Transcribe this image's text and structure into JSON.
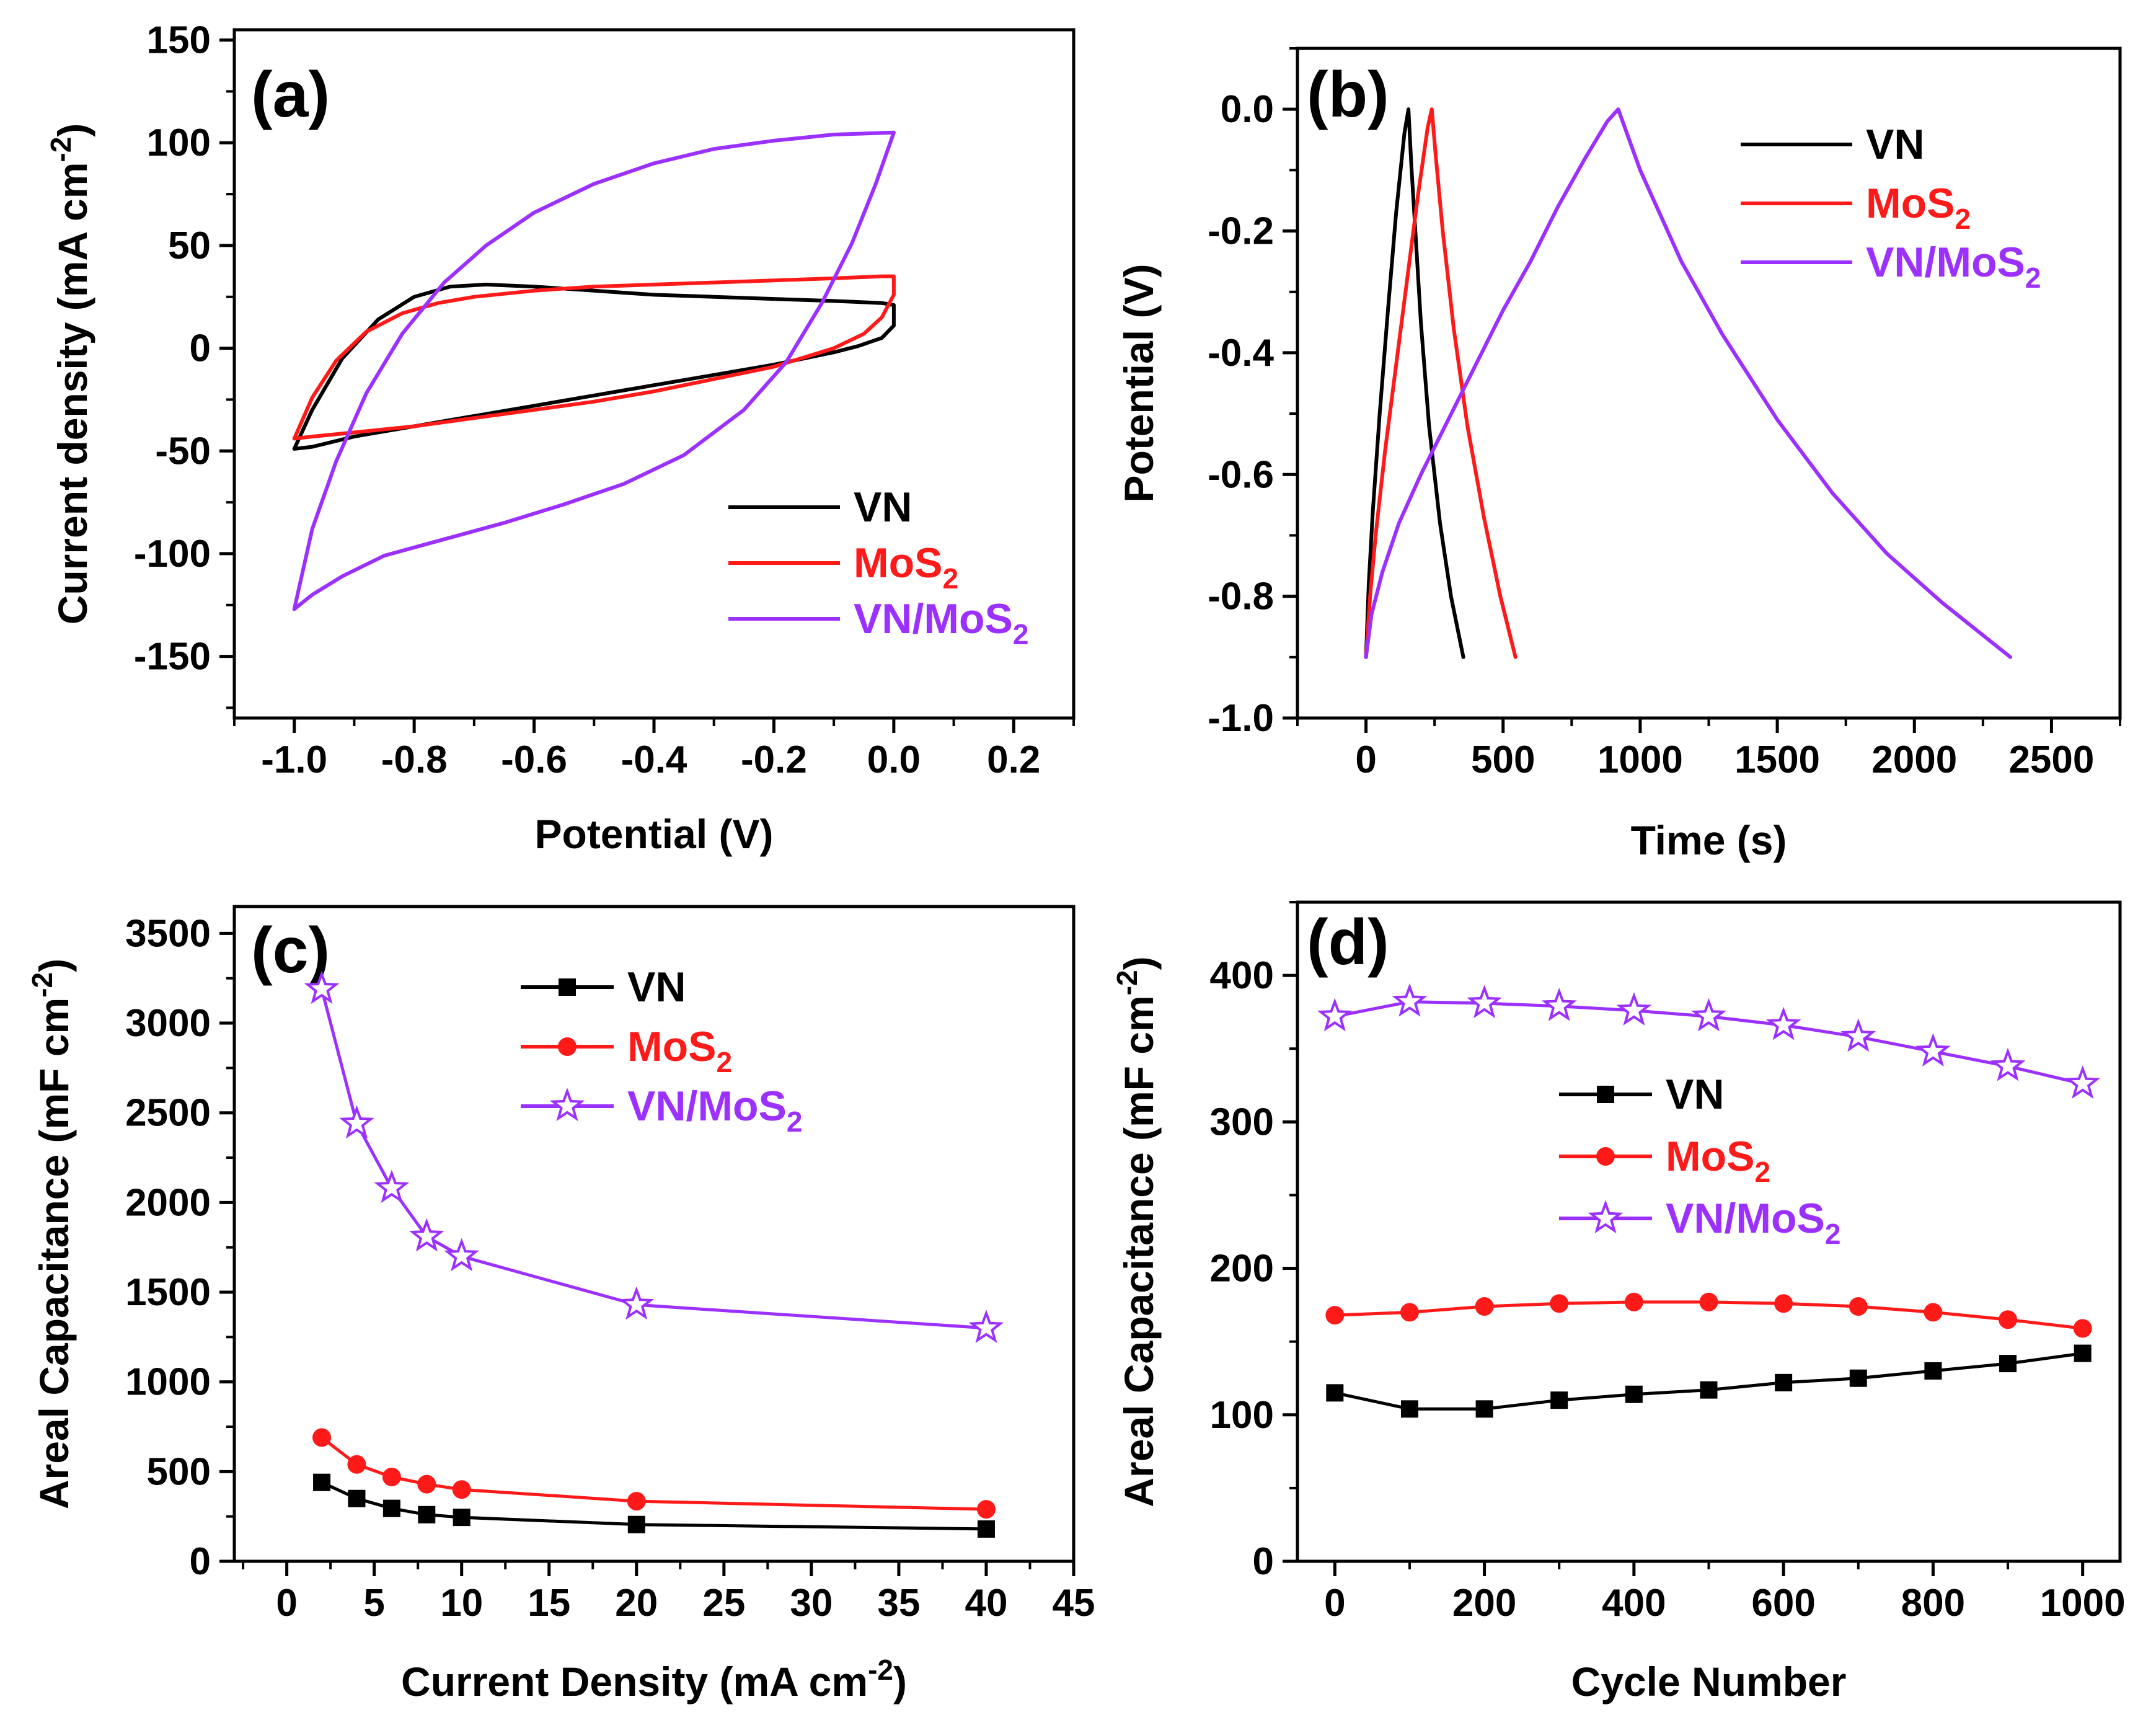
{
  "colors": {
    "VN": "#000000",
    "MoS2": "#ff1a1a",
    "VN/MoS2": "#9b30ff"
  },
  "chart_data": [
    {
      "id": "a",
      "type": "line",
      "panel_label": "(a)",
      "xlabel": "Potential (V)",
      "ylabel": {
        "main": "Current density (mA cm",
        "sup": "-2",
        "close": ")"
      },
      "xlim": [
        -1.1,
        0.3
      ],
      "ylim": [
        -180,
        155
      ],
      "xticks": [
        -1.0,
        -0.8,
        -0.6,
        -0.4,
        -0.2,
        0.0,
        0.2
      ],
      "xtick_labels": [
        "-1.0",
        "-0.8",
        "-0.6",
        "-0.4",
        "-0.2",
        "0.0",
        "0.2"
      ],
      "yticks": [
        -150,
        -100,
        -50,
        0,
        50,
        100,
        150
      ],
      "ytick_labels": [
        "-150",
        "-100",
        "-50",
        "0",
        "50",
        "100",
        "150"
      ],
      "legend_position": "bottom-right",
      "series": [
        {
          "key": "VN",
          "name": "VN",
          "sub": "",
          "name_tail": "",
          "x": [
            -1.0,
            -0.97,
            -0.92,
            -0.86,
            -0.8,
            -0.74,
            -0.68,
            -0.6,
            -0.5,
            -0.4,
            -0.3,
            -0.2,
            -0.1,
            -0.02,
            0.0,
            0.0,
            -0.02,
            -0.06,
            -0.1,
            -0.2,
            -0.3,
            -0.4,
            -0.5,
            -0.6,
            -0.7,
            -0.8,
            -0.9,
            -0.97,
            -1.0
          ],
          "y": [
            -49,
            -30,
            -5,
            14,
            25,
            30,
            31,
            30,
            28,
            26,
            25,
            24,
            23,
            22,
            21,
            11,
            5,
            1,
            -2,
            -8,
            -13,
            -18,
            -23,
            -28,
            -33,
            -38,
            -43,
            -48,
            -49
          ]
        },
        {
          "key": "MoS2",
          "name": "MoS",
          "sub": "2",
          "name_tail": "",
          "x": [
            -1.0,
            -0.97,
            -0.93,
            -0.88,
            -0.82,
            -0.76,
            -0.7,
            -0.6,
            -0.5,
            -0.4,
            -0.3,
            -0.2,
            -0.1,
            -0.02,
            0.0,
            0.0,
            -0.02,
            -0.05,
            -0.1,
            -0.2,
            -0.3,
            -0.4,
            -0.5,
            -0.6,
            -0.7,
            -0.8,
            -0.9,
            -0.97,
            -1.0
          ],
          "y": [
            -44,
            -24,
            -6,
            8,
            17,
            22,
            25,
            28,
            30,
            31,
            32,
            33,
            34,
            35,
            35,
            26,
            15,
            7,
            0,
            -9,
            -15,
            -21,
            -26,
            -30,
            -34,
            -38,
            -41,
            -43,
            -44
          ]
        },
        {
          "key": "VN/MoS2",
          "name": "VN/MoS",
          "sub": "2",
          "name_tail": "",
          "x": [
            -1.0,
            -0.97,
            -0.93,
            -0.88,
            -0.82,
            -0.75,
            -0.68,
            -0.6,
            -0.5,
            -0.4,
            -0.3,
            -0.2,
            -0.1,
            0.0,
            0.0,
            -0.03,
            -0.07,
            -0.12,
            -0.18,
            -0.25,
            -0.35,
            -0.45,
            -0.55,
            -0.65,
            -0.75,
            -0.85,
            -0.92,
            -0.97,
            -1.0
          ],
          "y": [
            -127,
            -88,
            -55,
            -22,
            7,
            32,
            50,
            66,
            80,
            90,
            97,
            101,
            104,
            105,
            105,
            80,
            51,
            22,
            -7,
            -30,
            -52,
            -66,
            -76,
            -85,
            -93,
            -101,
            -111,
            -120,
            -127
          ]
        }
      ]
    },
    {
      "id": "b",
      "type": "line",
      "panel_label": "(b)",
      "xlabel": "Time (s)",
      "ylabel": {
        "main": "Potential (V)",
        "sup": "",
        "close": ""
      },
      "xlim": [
        -250,
        2750
      ],
      "ylim": [
        -1.0,
        0.1
      ],
      "xticks": [
        0,
        500,
        1000,
        1500,
        2000,
        2500
      ],
      "xtick_labels": [
        "0",
        "500",
        "1000",
        "1500",
        "2000",
        "2500"
      ],
      "yticks": [
        -1.0,
        -0.8,
        -0.6,
        -0.4,
        -0.2,
        0.0
      ],
      "ytick_labels": [
        "-1.0",
        "-0.8",
        "-0.6",
        "-0.4",
        "-0.2",
        "0.0"
      ],
      "legend_position": "top-right",
      "series": [
        {
          "key": "VN",
          "name": "VN",
          "sub": "",
          "name_tail": "",
          "x": [
            0,
            10,
            25,
            50,
            80,
            110,
            140,
            155,
            155,
            165,
            180,
            200,
            230,
            270,
            310,
            355
          ],
          "y": [
            -0.9,
            -0.78,
            -0.66,
            -0.5,
            -0.33,
            -0.17,
            -0.04,
            0.0,
            0.0,
            -0.09,
            -0.2,
            -0.35,
            -0.52,
            -0.68,
            -0.8,
            -0.9
          ]
        },
        {
          "key": "MoS2",
          "name": "MoS",
          "sub": "2",
          "name_tail": "",
          "x": [
            0,
            15,
            35,
            70,
            110,
            150,
            190,
            225,
            240,
            240,
            255,
            280,
            320,
            370,
            430,
            490,
            545
          ],
          "y": [
            -0.9,
            -0.8,
            -0.7,
            -0.56,
            -0.42,
            -0.28,
            -0.14,
            -0.03,
            0.0,
            0.0,
            -0.08,
            -0.2,
            -0.36,
            -0.52,
            -0.67,
            -0.8,
            -0.9
          ]
        },
        {
          "key": "VN/MoS2",
          "name": "VN/MoS",
          "sub": "2",
          "name_tail": "",
          "x": [
            0,
            20,
            60,
            120,
            200,
            300,
            400,
            500,
            600,
            700,
            800,
            880,
            920,
            920,
            1000,
            1150,
            1300,
            1500,
            1700,
            1900,
            2100,
            2350
          ],
          "y": [
            -0.9,
            -0.83,
            -0.76,
            -0.68,
            -0.6,
            -0.51,
            -0.42,
            -0.33,
            -0.25,
            -0.16,
            -0.08,
            -0.02,
            0.0,
            0.0,
            -0.1,
            -0.25,
            -0.37,
            -0.51,
            -0.63,
            -0.73,
            -0.81,
            -0.9
          ]
        }
      ]
    },
    {
      "id": "c",
      "type": "line",
      "panel_label": "(c)",
      "xlabel": {
        "main": "Current Density (mA cm",
        "sup": "-2",
        "close": ")"
      },
      "ylabel": {
        "main": "Areal Capacitance (mF cm",
        "sup": "-2",
        "close": ")"
      },
      "xlim": [
        -3,
        45
      ],
      "ylim": [
        0,
        3650
      ],
      "xticks": [
        0,
        5,
        10,
        15,
        20,
        25,
        30,
        35,
        40,
        45
      ],
      "xtick_labels": [
        "0",
        "5",
        "10",
        "15",
        "20",
        "25",
        "30",
        "35",
        "40",
        "45"
      ],
      "yticks": [
        0,
        500,
        1000,
        1500,
        2000,
        2500,
        3000,
        3500
      ],
      "ytick_labels": [
        "0",
        "500",
        "1000",
        "1500",
        "2000",
        "2500",
        "3000",
        "3500"
      ],
      "legend_position": "top-center",
      "series": [
        {
          "key": "VN",
          "name": "VN",
          "sub": "",
          "name_tail": "",
          "marker": "square",
          "x": [
            2,
            4,
            6,
            8,
            10,
            20,
            40
          ],
          "y": [
            440,
            350,
            295,
            260,
            245,
            205,
            180
          ]
        },
        {
          "key": "MoS2",
          "name": "MoS",
          "sub": "2",
          "name_tail": "",
          "marker": "circle",
          "x": [
            2,
            4,
            6,
            8,
            10,
            20,
            40
          ],
          "y": [
            690,
            540,
            470,
            430,
            400,
            335,
            290
          ]
        },
        {
          "key": "VN/MoS2",
          "name": "VN/MoS",
          "sub": "2",
          "name_tail": "",
          "marker": "star",
          "x": [
            2,
            4,
            6,
            8,
            10,
            20,
            40
          ],
          "y": [
            3190,
            2440,
            2080,
            1810,
            1700,
            1430,
            1300
          ]
        }
      ]
    },
    {
      "id": "d",
      "type": "line",
      "panel_label": "(d)",
      "xlabel": "Cycle Number",
      "ylabel": {
        "main": "Areal Capacitance (mF cm",
        "sup": "-2",
        "close": ")"
      },
      "xlim": [
        -50,
        1050
      ],
      "ylim": [
        0,
        450
      ],
      "xticks": [
        0,
        200,
        400,
        600,
        800,
        1000
      ],
      "xtick_labels": [
        "0",
        "200",
        "400",
        "600",
        "800",
        "1000"
      ],
      "yticks": [
        0,
        100,
        200,
        300,
        400
      ],
      "ytick_labels": [
        "0",
        "100",
        "200",
        "300",
        "400"
      ],
      "legend_position": "center",
      "series": [
        {
          "key": "VN",
          "name": "VN",
          "sub": "",
          "name_tail": "",
          "marker": "square",
          "x": [
            0,
            100,
            200,
            300,
            400,
            500,
            600,
            700,
            800,
            900,
            1000
          ],
          "y": [
            115,
            104,
            104,
            110,
            114,
            117,
            122,
            125,
            130,
            135,
            142
          ]
        },
        {
          "key": "MoS2",
          "name": "MoS",
          "sub": "2",
          "name_tail": "",
          "marker": "circle",
          "x": [
            0,
            100,
            200,
            300,
            400,
            500,
            600,
            700,
            800,
            900,
            1000
          ],
          "y": [
            168,
            170,
            174,
            176,
            177,
            177,
            176,
            174,
            170,
            165,
            159
          ]
        },
        {
          "key": "VN/MoS2",
          "name": "VN/MoS",
          "sub": "2",
          "name_tail": "",
          "marker": "star",
          "x": [
            0,
            100,
            200,
            300,
            400,
            500,
            600,
            700,
            800,
            900,
            1000
          ],
          "y": [
            372,
            382,
            381,
            379,
            376,
            372,
            366,
            358,
            348,
            338,
            326
          ]
        }
      ]
    }
  ]
}
